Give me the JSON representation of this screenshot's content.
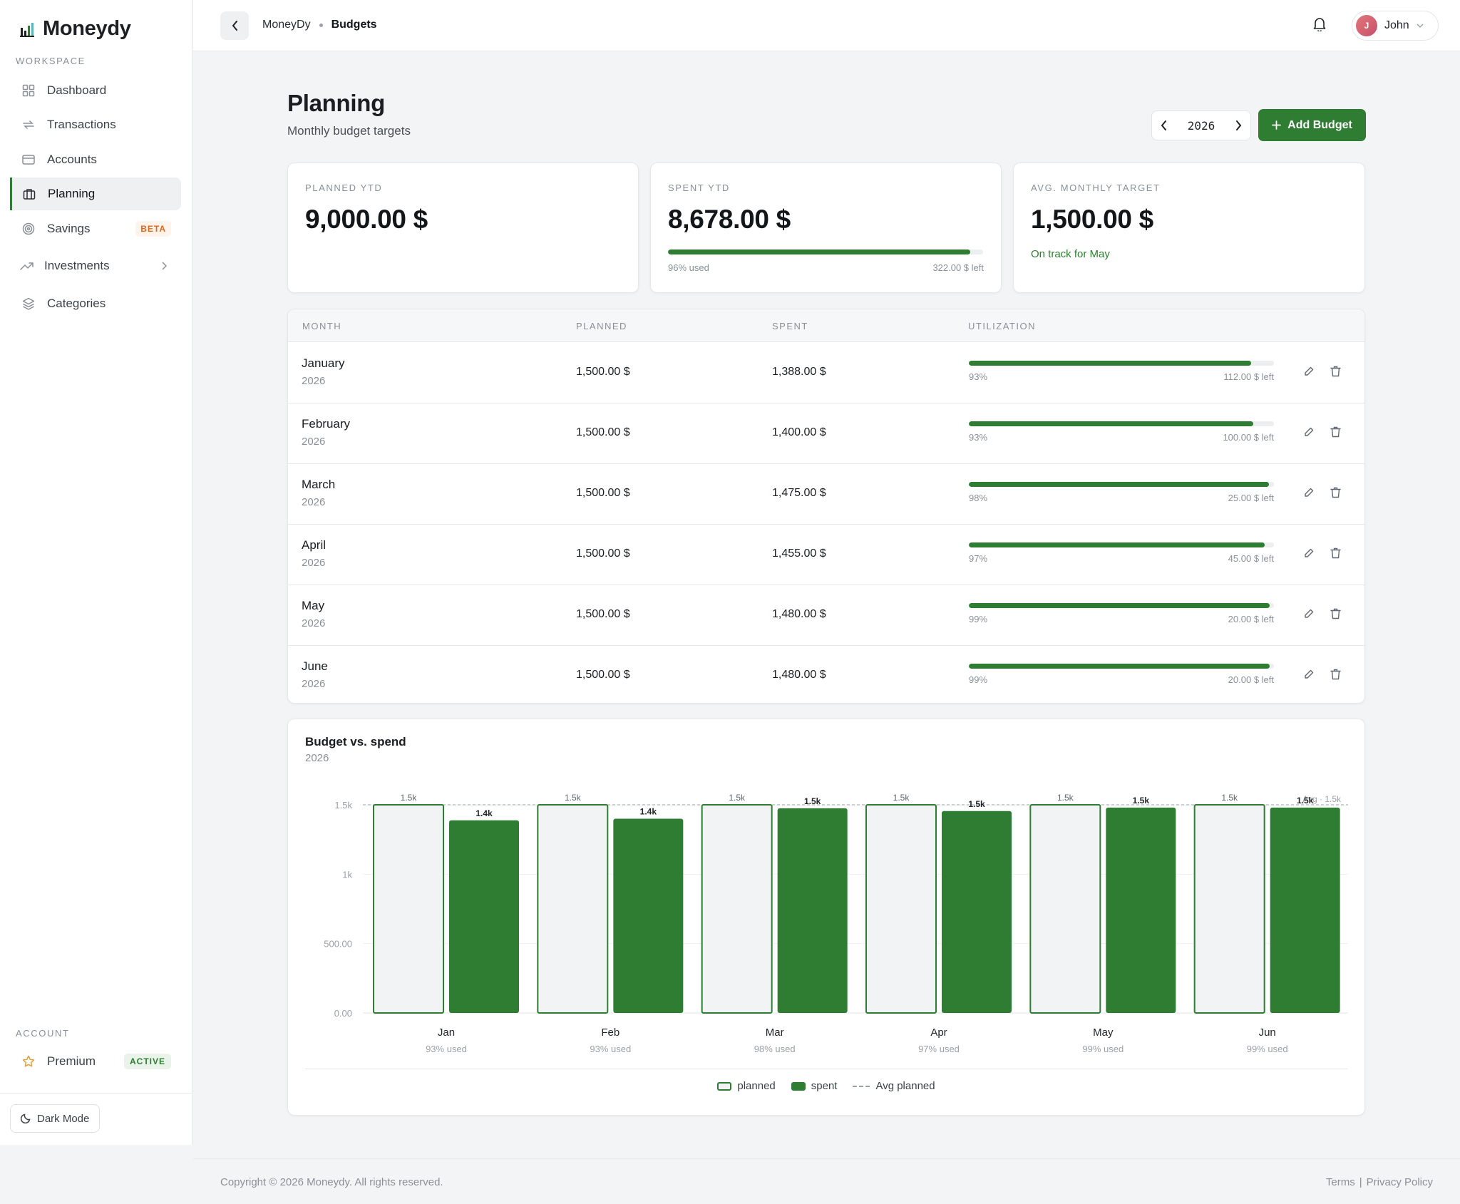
{
  "app": {
    "name": "Moneydy"
  },
  "sidebar": {
    "workspace_label": "WORKSPACE",
    "items": [
      {
        "label": "Dashboard",
        "icon": "grid-icon"
      },
      {
        "label": "Transactions",
        "icon": "repeat-icon"
      },
      {
        "label": "Accounts",
        "icon": "credit-card-icon"
      },
      {
        "label": "Planning",
        "icon": "briefcase-icon",
        "active": true
      },
      {
        "label": "Savings",
        "icon": "target-icon",
        "badge": "BETA"
      },
      {
        "label": "Investments",
        "icon": "trending-up-icon"
      },
      {
        "label": "Categories",
        "icon": "layers-icon"
      }
    ],
    "account_label": "ACCOUNT",
    "premium": {
      "label": "Premium",
      "badge": "ACTIVE"
    },
    "dark_mode": "Dark Mode"
  },
  "topbar": {
    "breadcrumb": [
      "MoneyDy",
      "Budgets"
    ],
    "user": {
      "name": "John",
      "initial": "J"
    }
  },
  "header": {
    "title": "Planning",
    "subtitle": "Monthly budget targets",
    "year": "2026",
    "add_label": "Add Budget"
  },
  "stats": {
    "planned": {
      "label": "PLANNED YTD",
      "value": "9,000.00 $"
    },
    "spent": {
      "label": "SPENT YTD",
      "value": "8,678.00 $",
      "used": "96% used",
      "left": "322.00 $ left",
      "fraction": 0.96
    },
    "avg": {
      "label": "AVG. MONTHLY TARGET",
      "value": "1,500.00 $",
      "note": "On track for May"
    }
  },
  "table": {
    "headers": [
      "MONTH",
      "PLANNED",
      "SPENT",
      "UTILIZATION"
    ],
    "rows": [
      {
        "month": "January",
        "year": "2026",
        "planned": "1,500.00 $",
        "spent": "1,388.00 $",
        "pct": "93%",
        "left": "112.00 $ left",
        "fraction": 0.925
      },
      {
        "month": "February",
        "year": "2026",
        "planned": "1,500.00 $",
        "spent": "1,400.00 $",
        "pct": "93%",
        "left": "100.00 $ left",
        "fraction": 0.933
      },
      {
        "month": "March",
        "year": "2026",
        "planned": "1,500.00 $",
        "spent": "1,475.00 $",
        "pct": "98%",
        "left": "25.00 $ left",
        "fraction": 0.983
      },
      {
        "month": "April",
        "year": "2026",
        "planned": "1,500.00 $",
        "spent": "1,455.00 $",
        "pct": "97%",
        "left": "45.00 $ left",
        "fraction": 0.97
      },
      {
        "month": "May",
        "year": "2026",
        "planned": "1,500.00 $",
        "spent": "1,480.00 $",
        "pct": "99%",
        "left": "20.00 $ left",
        "fraction": 0.987
      },
      {
        "month": "June",
        "year": "2026",
        "planned": "1,500.00 $",
        "spent": "1,480.00 $",
        "pct": "99%",
        "left": "20.00 $ left",
        "fraction": 0.987
      }
    ]
  },
  "chart": {
    "title": "Budget vs. spend",
    "subtitle": "2026",
    "legend": {
      "planned": "planned",
      "spent": "spent",
      "avg": "Avg planned"
    }
  },
  "chart_data": {
    "type": "bar",
    "title": "Budget vs. spend",
    "subtitle": "2026",
    "categories": [
      "Jan",
      "Feb",
      "Mar",
      "Apr",
      "May",
      "Jun"
    ],
    "sublabels": [
      "93% used",
      "93% used",
      "98% used",
      "97% used",
      "99% used",
      "99% used"
    ],
    "series": [
      {
        "name": "planned",
        "values": [
          1500,
          1500,
          1500,
          1500,
          1500,
          1500
        ],
        "labels": [
          "1.5k",
          "1.5k",
          "1.5k",
          "1.5k",
          "1.5k",
          "1.5k"
        ],
        "color": "#f1f3f4",
        "stroke": "#2e7d32"
      },
      {
        "name": "spent",
        "values": [
          1388,
          1400,
          1475,
          1455,
          1480,
          1480
        ],
        "labels": [
          "1.4k",
          "1.4k",
          "1.5k",
          "1.5k",
          "1.5k",
          "1.5k"
        ],
        "color": "#2e7d32"
      }
    ],
    "reference_line": {
      "name": "Avg planned",
      "value": 1500,
      "label": "Avg · 1.5k"
    },
    "yticks": [
      "0.00",
      "500.00",
      "1k",
      "1.5k"
    ],
    "ytick_values": [
      0,
      500,
      1000,
      1500
    ],
    "ylim": [
      0,
      1500
    ],
    "grid": true,
    "legend_position": "bottom-center"
  },
  "footer": {
    "copyright": "Copyright © 2026 Moneydy. All rights reserved.",
    "terms": "Terms",
    "sep": "|",
    "privacy": "Privacy Policy"
  },
  "colors": {
    "accent": "#2e7d32",
    "beta": "#d56a1e",
    "planned_fill": "#f1f3f4"
  }
}
